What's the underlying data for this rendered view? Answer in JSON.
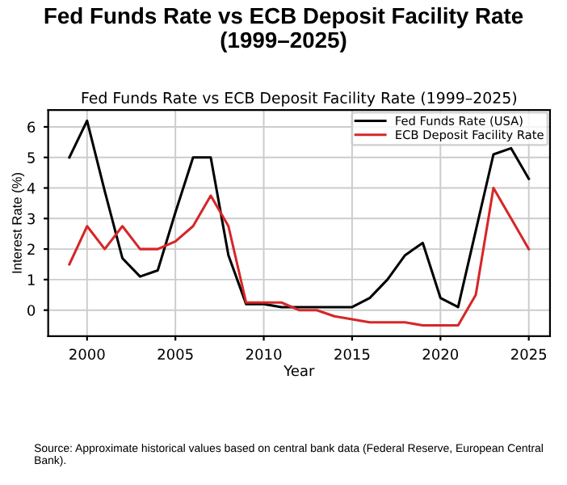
{
  "chart_data": {
    "type": "line",
    "title": "Fed Funds Rate vs ECB Deposit Facility Rate\n(1999–2025)",
    "subtitle": "Fed Funds Rate vs ECB Deposit Facility Rate (1999–2025)",
    "xlabel": "Year",
    "ylabel": "Interest Rate (%)",
    "x": [
      1999,
      2000,
      2001,
      2002,
      2003,
      2004,
      2005,
      2006,
      2007,
      2008,
      2009,
      2010,
      2011,
      2012,
      2013,
      2014,
      2015,
      2016,
      2017,
      2018,
      2019,
      2020,
      2021,
      2022,
      2023,
      2024,
      2025
    ],
    "series": [
      {
        "name": "Fed Funds Rate (USA)",
        "color": "#000000",
        "values": [
          5.0,
          6.2,
          3.9,
          1.7,
          1.1,
          1.3,
          3.2,
          5.0,
          5.0,
          1.8,
          0.2,
          0.2,
          0.1,
          0.1,
          0.1,
          0.1,
          0.1,
          0.4,
          1.0,
          1.8,
          2.2,
          0.4,
          0.1,
          2.6,
          5.1,
          5.3,
          4.3
        ]
      },
      {
        "name": "ECB Deposit Facility Rate",
        "color": "#d62728",
        "values": [
          1.5,
          2.75,
          2.0,
          2.75,
          2.0,
          2.0,
          2.25,
          2.75,
          3.75,
          2.75,
          0.25,
          0.25,
          0.25,
          0.0,
          0.0,
          -0.2,
          -0.3,
          -0.4,
          -0.4,
          -0.4,
          -0.5,
          -0.5,
          -0.5,
          0.5,
          4.0,
          3.0,
          2.0
        ]
      }
    ],
    "xlim": [
      1997.8,
      2026.2
    ],
    "ylim": [
      -0.85,
      6.55
    ],
    "xticks": [
      2000,
      2005,
      2010,
      2015,
      2020,
      2025
    ],
    "yticks": [
      0,
      1,
      2,
      3,
      4,
      5,
      6
    ],
    "grid": true,
    "legend": "top right",
    "marker": "none",
    "line_style": "solid",
    "annotations": [
      "Source: Approximate historical values based on central bank data (Federal Reserve, European Central Bank)."
    ]
  }
}
